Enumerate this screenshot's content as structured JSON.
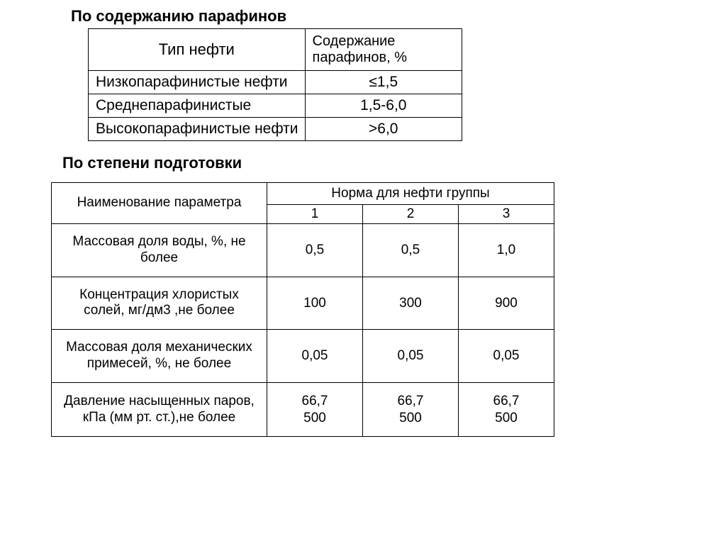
{
  "heading1": "По содержанию парафинов",
  "table1": {
    "header": {
      "col1": "Тип нефти",
      "col2": "Содержание парафинов, %"
    },
    "rows": [
      {
        "label": "Низкопарафинистые нефти",
        "value": "≤1,5"
      },
      {
        "label": "Среднепарафинистые",
        "value": "1,5-6,0"
      },
      {
        "label": "Высокопарафинистые нефти",
        "value": ">6,0"
      }
    ]
  },
  "heading2": "По степени подготовки",
  "table2": {
    "header": {
      "param": "Наименование параметра",
      "groups_title": "Норма для нефти группы",
      "groups": [
        "1",
        "2",
        "3"
      ]
    },
    "rows": [
      {
        "param": "Массовая доля воды, %, не более",
        "values": [
          "0,5",
          "0,5",
          "1,0"
        ]
      },
      {
        "param": "Концентрация хлористых солей, мг/дм3 ,не более",
        "values": [
          "100",
          "300",
          "900"
        ]
      },
      {
        "param": "Массовая доля механических примесей, %, не более",
        "values": [
          "0,05",
          "0,05",
          "0,05"
        ]
      },
      {
        "param": "Давление насыщенных паров,\nкПа (мм рт. ст.),не более",
        "values": [
          "66,7\n500",
          "66,7\n500",
          "66,7\n500"
        ]
      }
    ]
  }
}
